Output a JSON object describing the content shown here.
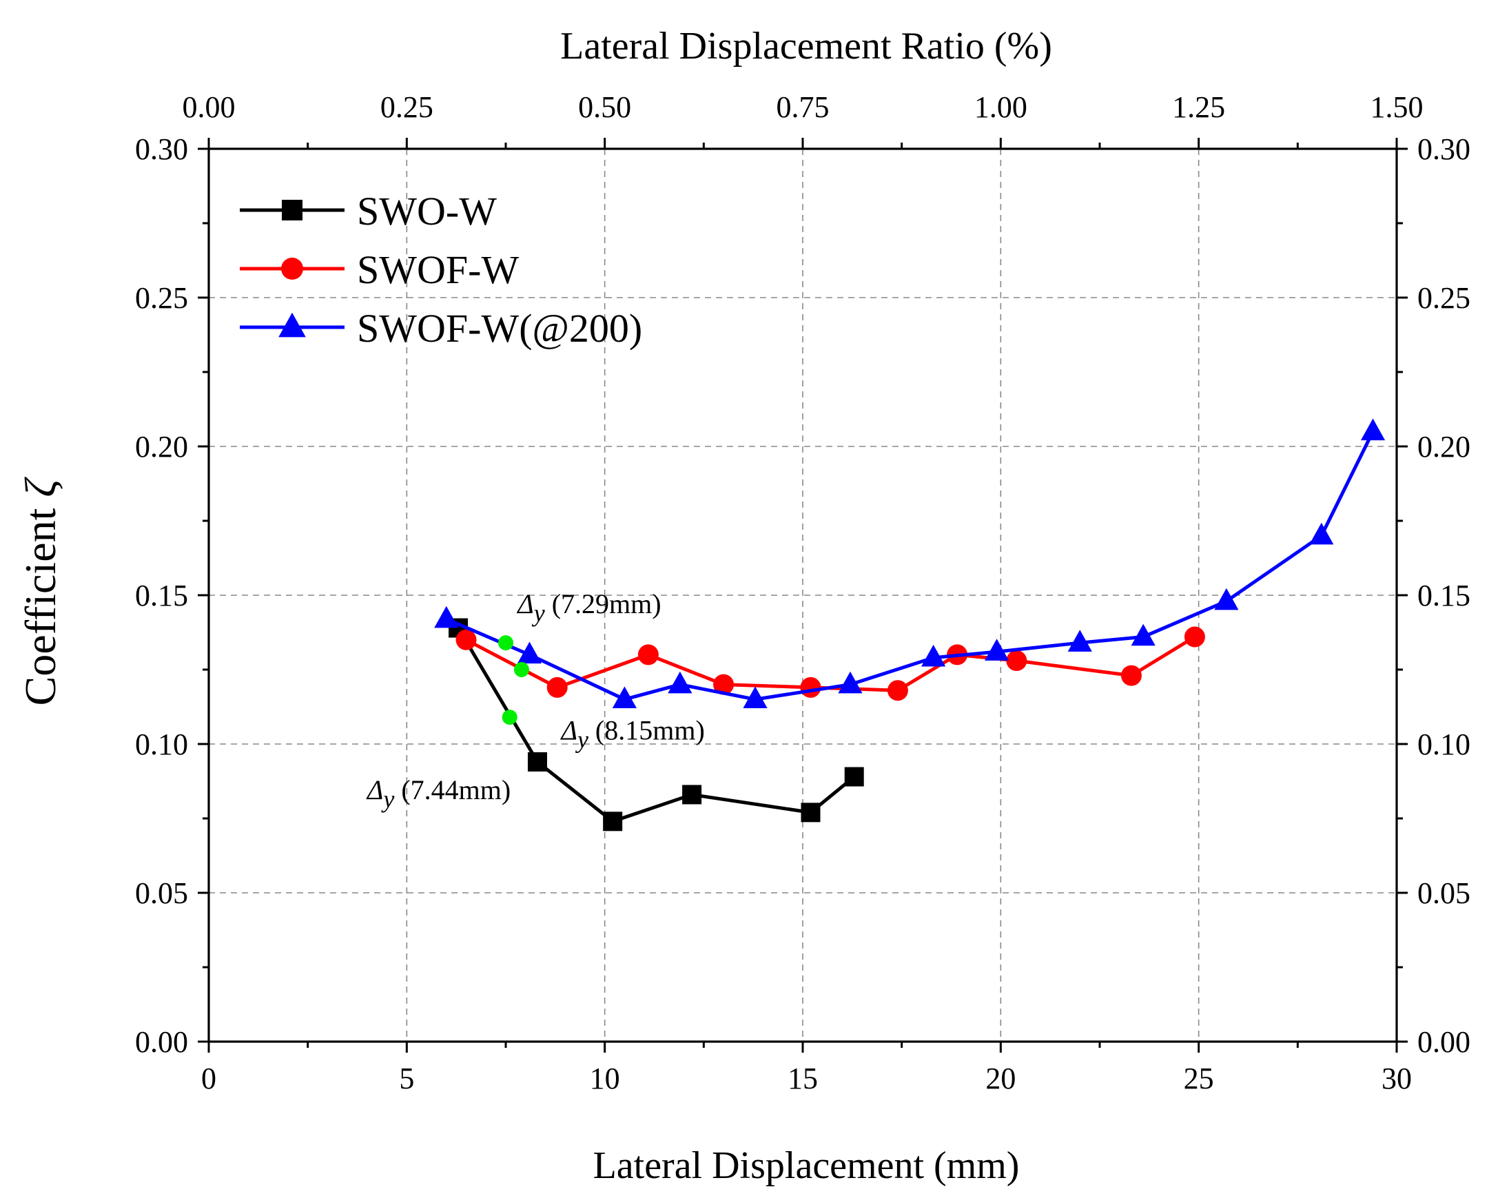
{
  "chart_data": {
    "type": "line",
    "xlabel": "Lateral Displacement (mm)",
    "x2label": "Lateral Displacement Ratio (%)",
    "ylabel_prefix": "Coefficient",
    "ylabel_symbol": "ζ",
    "xlim": [
      0,
      30
    ],
    "x2lim": [
      0,
      1.5
    ],
    "ylim": [
      0,
      0.3
    ],
    "xticks": [
      "0",
      "5",
      "10",
      "15",
      "20",
      "25",
      "30"
    ],
    "x2ticks": [
      "0.00",
      "0.25",
      "0.50",
      "0.75",
      "1.00",
      "1.25",
      "1.50"
    ],
    "yticks": [
      "0.00",
      "0.05",
      "0.10",
      "0.15",
      "0.20",
      "0.25",
      "0.30"
    ],
    "grid": true,
    "legend_position": "top-left",
    "series": [
      {
        "name": "SWO-W",
        "color": "#000000",
        "marker": "square",
        "x": [
          6.3,
          8.3,
          10.2,
          12.2,
          15.2,
          16.3
        ],
        "y": [
          0.139,
          0.094,
          0.074,
          0.083,
          0.077,
          0.089
        ]
      },
      {
        "name": "SWOF-W",
        "color": "#ff0000",
        "marker": "circle",
        "x": [
          6.5,
          8.8,
          11.1,
          13.0,
          15.2,
          17.4,
          18.9,
          20.4,
          23.3,
          24.9
        ],
        "y": [
          0.135,
          0.119,
          0.13,
          0.12,
          0.119,
          0.118,
          0.13,
          0.128,
          0.123,
          0.136
        ]
      },
      {
        "name": "SWOF-W(@200)",
        "color": "#0000ff",
        "marker": "triangle",
        "x": [
          6.0,
          8.1,
          10.5,
          11.9,
          13.8,
          16.2,
          18.3,
          19.9,
          22.0,
          23.6,
          25.7,
          28.1,
          29.4
        ],
        "y": [
          0.142,
          0.13,
          0.115,
          0.12,
          0.115,
          0.12,
          0.129,
          0.131,
          0.134,
          0.136,
          0.148,
          0.17,
          0.205
        ]
      }
    ],
    "yield_points": {
      "color": "#00ee00",
      "points": [
        {
          "x": 7.5,
          "y": 0.134
        },
        {
          "x": 7.9,
          "y": 0.125
        },
        {
          "x": 7.6,
          "y": 0.109
        }
      ]
    },
    "annotations": [
      {
        "symbol": "Δ",
        "sub": "y",
        "text": " (7.29mm)",
        "x": 7.8,
        "y": 0.144
      },
      {
        "symbol": "Δ",
        "sub": "y",
        "text": " (8.15mm)",
        "x": 8.9,
        "y": 0.1015
      },
      {
        "symbol": "Δ",
        "sub": "y",
        "text": " (7.44mm)",
        "x": 4.0,
        "y": 0.0815
      }
    ]
  }
}
